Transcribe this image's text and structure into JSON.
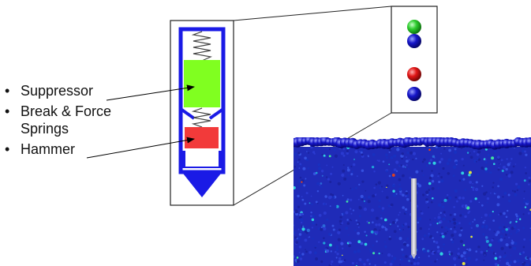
{
  "labels": {
    "suppressor": "Suppressor",
    "springs_line1": "Break & Force",
    "springs_line2": "Springs",
    "hammer": "Hammer"
  },
  "colors": {
    "probe_blue": "#1a1ae6",
    "suppressor_green": "#80ff20",
    "hammer_red": "#f23a3a",
    "spring_gray": "#444444",
    "legend_green": "#2ecc2e",
    "legend_blue": "#1515c8",
    "legend_red": "#e01515",
    "particle_base": "#1f2bb8"
  },
  "legend_swatches": [
    {
      "name": "green-sphere",
      "color": "#2ecc2e"
    },
    {
      "name": "blue-sphere",
      "color": "#1515c8"
    },
    {
      "name": "red-sphere",
      "color": "#e01515"
    },
    {
      "name": "blue-sphere",
      "color": "#1515c8"
    }
  ],
  "icons": [
    "spring-coil-icon",
    "arrow-icon",
    "sphere-icon",
    "probe-rod-icon"
  ]
}
